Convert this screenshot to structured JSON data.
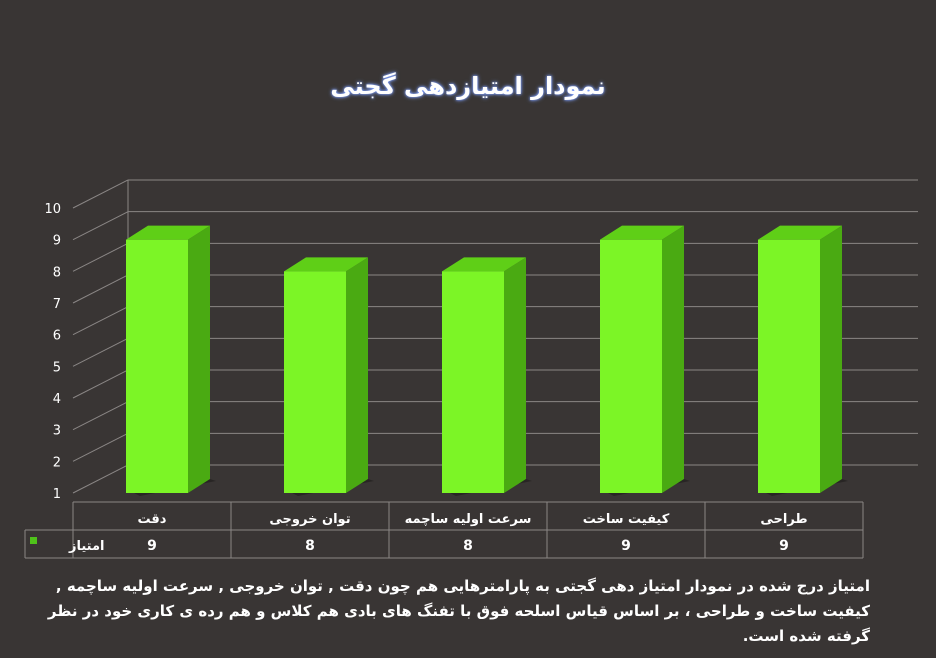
{
  "chart_data": {
    "type": "bar",
    "title": "نمودار امتیازدهی گجتی",
    "categories": [
      "دقت",
      "توان خروجی",
      "سرعت اولیه ساچمه",
      "کیفیت ساخت",
      "طراحی"
    ],
    "series": [
      {
        "name": "امتیاز",
        "values": [
          9,
          8,
          8,
          9,
          9
        ]
      }
    ],
    "yticks": [
      "1",
      "2",
      "3",
      "4",
      "5",
      "6",
      "7",
      "8",
      "9",
      "10"
    ],
    "ylim": [
      1,
      10
    ],
    "grid": true,
    "legend": "data-table-left",
    "colors": {
      "bar_front": "#7cf526",
      "bar_side": "#4aaa12",
      "bar_top": "#5fcf17",
      "background": "#393534"
    }
  },
  "caption": "امتیاز درج شده در نمودار امتیاز دهی گجتی  به پارامترهایی هم چون دقت , توان خروجی , سرعت اولیه ساچمه , کیفیت ساخت و طراحی ، بر اساس قیاس اسلحه فوق با تفنگ های بادی هم کلاس و هم رده ی کاری خود در نظر گرفته شده است."
}
